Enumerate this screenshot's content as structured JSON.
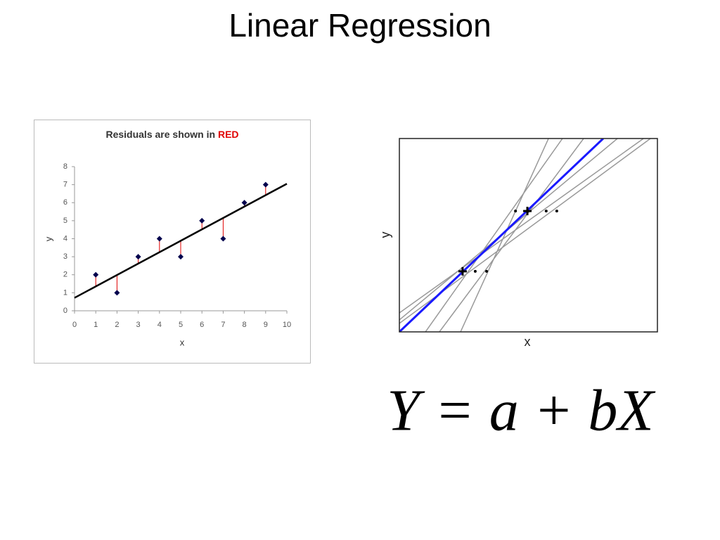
{
  "title": "Linear Regression",
  "chart_data": [
    {
      "type": "scatter",
      "title": "Residuals are shown in",
      "title_highlight": "RED",
      "highlight_color": "#e00000",
      "x": [
        1,
        2,
        3,
        4,
        5,
        6,
        7,
        8,
        9
      ],
      "values": [
        2,
        1,
        3,
        4,
        3,
        5,
        4,
        6,
        7
      ],
      "color": "#00004d",
      "residual_color": "#e00000",
      "fit_color": "#000000",
      "fit": {
        "intercept": 0.72,
        "slope": 0.633
      },
      "xlim": [
        0,
        10
      ],
      "ylim": [
        0,
        8
      ],
      "xticks": [
        0,
        1,
        2,
        3,
        4,
        5,
        6,
        7,
        8,
        9,
        10
      ],
      "yticks": [
        0,
        1,
        2,
        3,
        4,
        5,
        6,
        7,
        8
      ],
      "xlabel": "x",
      "ylabel": "y"
    },
    {
      "type": "lines",
      "xlabel": "x",
      "ylabel": "y",
      "xlim": [
        0,
        10
      ],
      "ylim": [
        0,
        10
      ],
      "lines": [
        {
          "color": "#999999",
          "x": [
            0,
            9.73
          ],
          "values": [
            0.44,
            10
          ]
        },
        {
          "color": "#999999",
          "x": [
            0,
            8.45
          ],
          "values": [
            0.62,
            10
          ]
        },
        {
          "color": "#999999",
          "x": [
            1.01,
            6.32
          ],
          "values": [
            0,
            10
          ]
        },
        {
          "color": "#999999",
          "x": [
            1.55,
            7.14
          ],
          "values": [
            0,
            10
          ]
        },
        {
          "color": "#999999",
          "x": [
            2.37,
            5.78
          ],
          "values": [
            0,
            10
          ]
        },
        {
          "color": "#999999",
          "x": [
            0,
            9.46
          ],
          "values": [
            0.98,
            10
          ]
        },
        {
          "color": "#1a1aff",
          "x": [
            0,
            7.9
          ],
          "values": [
            0,
            10
          ]
        }
      ],
      "points": {
        "x": [
          4.5,
          4.96,
          5.69,
          6.1,
          2.45,
          2.94,
          3.38
        ],
        "values": [
          6.25,
          6.25,
          6.25,
          6.25,
          3.13,
          3.13,
          3.13
        ]
      },
      "means": {
        "x": [
          4.96,
          2.45
        ],
        "values": [
          6.25,
          3.13
        ]
      }
    }
  ],
  "equation": "Y = a + bX"
}
